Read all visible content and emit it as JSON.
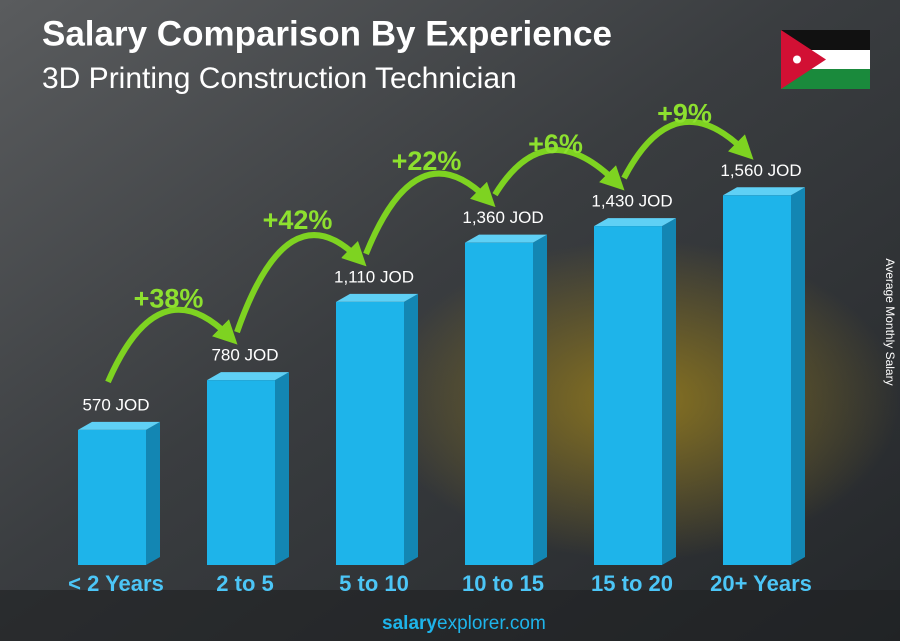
{
  "chart_data": {
    "type": "bar",
    "title": "Salary Comparison By Experience",
    "subtitle": "3D Printing Construction Technician",
    "y_label": "Average Monthly Salary",
    "categories": [
      "< 2 Years",
      "2 to 5",
      "5 to 10",
      "10 to 15",
      "15 to 20",
      "20+ Years"
    ],
    "values": [
      570,
      780,
      1110,
      1360,
      1430,
      1560
    ],
    "value_labels": [
      "570 JOD",
      "780 JOD",
      "1,110 JOD",
      "1,360 JOD",
      "1,430 JOD",
      "1,560 JOD"
    ],
    "annotations": [
      "+38%",
      "+42%",
      "+22%",
      "+6%",
      "+9%"
    ],
    "color": "#1eb4ea",
    "footer": {
      "brand": "salary",
      "domain": "explorer.com"
    }
  }
}
